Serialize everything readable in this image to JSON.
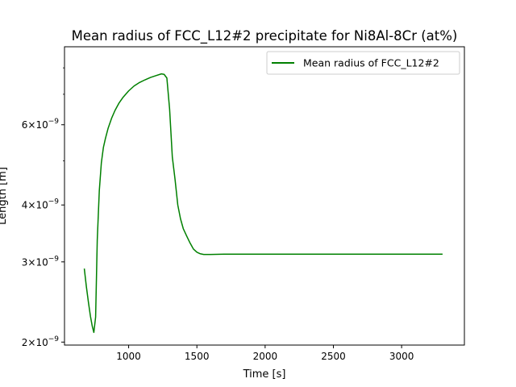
{
  "chart_data": {
    "type": "line",
    "title": "Mean radius of FCC_L12#2 precipitate for Ni8Al-8Cr (at%)",
    "xlabel": "Time [s]",
    "ylabel": "Length [m]",
    "yscale": "log",
    "xlim": [
      530,
      3460
    ],
    "ylim": [
      1.97e-09,
      8.9e-09
    ],
    "x_ticks": [
      {
        "value": 1000,
        "label": "1000"
      },
      {
        "value": 1500,
        "label": "1500"
      },
      {
        "value": 2000,
        "label": "2000"
      },
      {
        "value": 2500,
        "label": "2500"
      },
      {
        "value": 3000,
        "label": "3000"
      }
    ],
    "y_ticks": [
      {
        "value": 2e-09,
        "mantissa": "2",
        "exponent": "−9"
      },
      {
        "value": 3e-09,
        "mantissa": "3",
        "exponent": "−9"
      },
      {
        "value": 4e-09,
        "mantissa": "4",
        "exponent": "−9"
      },
      {
        "value": 6e-09,
        "mantissa": "6",
        "exponent": "−9"
      }
    ],
    "y_minor_ticks": [
      5e-09,
      7e-09,
      8e-09
    ],
    "grid": false,
    "legend": "top-right",
    "series": [
      {
        "name": "Mean radius of FCC_L12#2",
        "color": "#008000",
        "x": [
          675,
          690,
          705,
          720,
          733,
          745,
          758,
          770,
          785,
          800,
          815,
          830,
          850,
          875,
          900,
          930,
          960,
          1000,
          1040,
          1080,
          1120,
          1160,
          1200,
          1240,
          1260,
          1280,
          1300,
          1320,
          1340,
          1360,
          1380,
          1400,
          1425,
          1450,
          1475,
          1500,
          1525,
          1550,
          1600,
          1700,
          2000,
          2500,
          3000,
          3300
        ],
        "y": [
          2.9e-09,
          2.65e-09,
          2.45e-09,
          2.28e-09,
          2.17e-09,
          2.1e-09,
          2.27e-09,
          3.35e-09,
          4.3e-09,
          4.95e-09,
          5.35e-09,
          5.6e-09,
          5.9e-09,
          6.2e-09,
          6.45e-09,
          6.7e-09,
          6.9e-09,
          7.12e-09,
          7.3e-09,
          7.43e-09,
          7.53e-09,
          7.62e-09,
          7.69e-09,
          7.76e-09,
          7.74e-09,
          7.6e-09,
          6.5e-09,
          5.1e-09,
          4.55e-09,
          4e-09,
          3.73e-09,
          3.55e-09,
          3.42e-09,
          3.3e-09,
          3.2e-09,
          3.15e-09,
          3.125e-09,
          3.115e-09,
          3.115e-09,
          3.12e-09,
          3.12e-09,
          3.12e-09,
          3.12e-09,
          3.12e-09
        ]
      }
    ]
  }
}
